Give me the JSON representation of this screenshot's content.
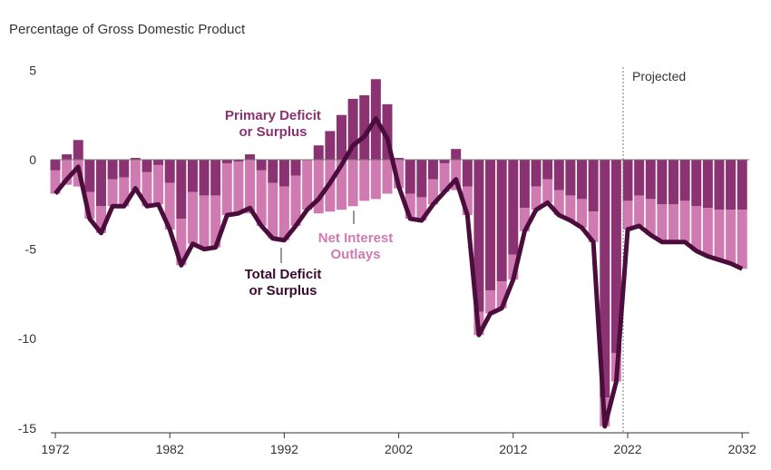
{
  "chart_data": {
    "type": "bar",
    "title": "",
    "ylabel": "Percentage of Gross Domestic Product",
    "xlabel": "",
    "ylim": [
      -15,
      5
    ],
    "yticks": [
      "5",
      "0",
      "-5",
      "-10",
      "-15"
    ],
    "ytick_values": [
      5,
      0,
      -5,
      -10,
      -15
    ],
    "xticks": [
      "1972",
      "1982",
      "1992",
      "2002",
      "2012",
      "2022",
      "2032"
    ],
    "xtick_values": [
      1972,
      1982,
      1992,
      2002,
      2012,
      2022,
      2032
    ],
    "projected_label": "Projected",
    "projected_start": 2022,
    "years": [
      1972,
      1973,
      1974,
      1975,
      1976,
      1977,
      1978,
      1979,
      1980,
      1981,
      1982,
      1983,
      1984,
      1985,
      1986,
      1987,
      1988,
      1989,
      1990,
      1991,
      1992,
      1993,
      1994,
      1995,
      1996,
      1997,
      1998,
      1999,
      2000,
      2001,
      2002,
      2003,
      2004,
      2005,
      2006,
      2007,
      2008,
      2009,
      2010,
      2011,
      2012,
      2013,
      2014,
      2015,
      2016,
      2017,
      2018,
      2019,
      2020,
      2021,
      2022,
      2023,
      2024,
      2025,
      2026,
      2027,
      2028,
      2029,
      2030,
      2031,
      2032
    ],
    "series": [
      {
        "name": "Total Deficit or Surplus",
        "kind": "line",
        "color": "#4a0d3c",
        "values": [
          -1.9,
          -1.1,
          -0.4,
          -3.3,
          -4.1,
          -2.6,
          -2.6,
          -1.6,
          -2.6,
          -2.5,
          -3.9,
          -5.9,
          -4.7,
          -5.0,
          -4.9,
          -3.1,
          -3.0,
          -2.7,
          -3.7,
          -4.4,
          -4.5,
          -3.7,
          -2.8,
          -2.2,
          -1.3,
          -0.3,
          0.8,
          1.3,
          2.3,
          1.2,
          -1.5,
          -3.3,
          -3.4,
          -2.5,
          -1.8,
          -1.1,
          -3.1,
          -9.8,
          -8.6,
          -8.3,
          -6.7,
          -4.0,
          -2.8,
          -2.4,
          -3.1,
          -3.4,
          -3.8,
          -4.6,
          -14.9,
          -12.4,
          -3.9,
          -3.7,
          -4.2,
          -4.6,
          -4.6,
          -4.6,
          -5.1,
          -5.4,
          -5.6,
          -5.8,
          -6.1
        ]
      },
      {
        "name": "Net Interest Outlays",
        "kind": "bar",
        "color": "#d07ab2",
        "values": [
          1.3,
          1.4,
          1.5,
          1.5,
          1.5,
          1.5,
          1.6,
          1.7,
          1.9,
          2.2,
          2.6,
          2.6,
          2.9,
          3.0,
          2.9,
          2.9,
          2.9,
          3.0,
          3.1,
          3.1,
          3.0,
          2.8,
          2.8,
          3.0,
          2.9,
          2.8,
          2.6,
          2.3,
          2.2,
          1.9,
          1.6,
          1.4,
          1.3,
          1.4,
          1.6,
          1.7,
          1.6,
          1.3,
          1.3,
          1.5,
          1.4,
          1.3,
          1.3,
          1.3,
          1.4,
          1.4,
          1.6,
          1.7,
          1.6,
          1.6,
          1.6,
          1.7,
          2.0,
          2.1,
          2.1,
          2.3,
          2.5,
          2.7,
          2.8,
          3.0,
          3.3
        ]
      }
    ],
    "primary_series_name": "Primary Deficit or Surplus",
    "primary_color": "#8a3272",
    "annotations": {
      "primary": [
        "Primary Deficit",
        "or Surplus"
      ],
      "interest": [
        "Net Interest",
        "Outlays"
      ],
      "total": [
        "Total Deficit",
        "or Surplus"
      ]
    }
  }
}
